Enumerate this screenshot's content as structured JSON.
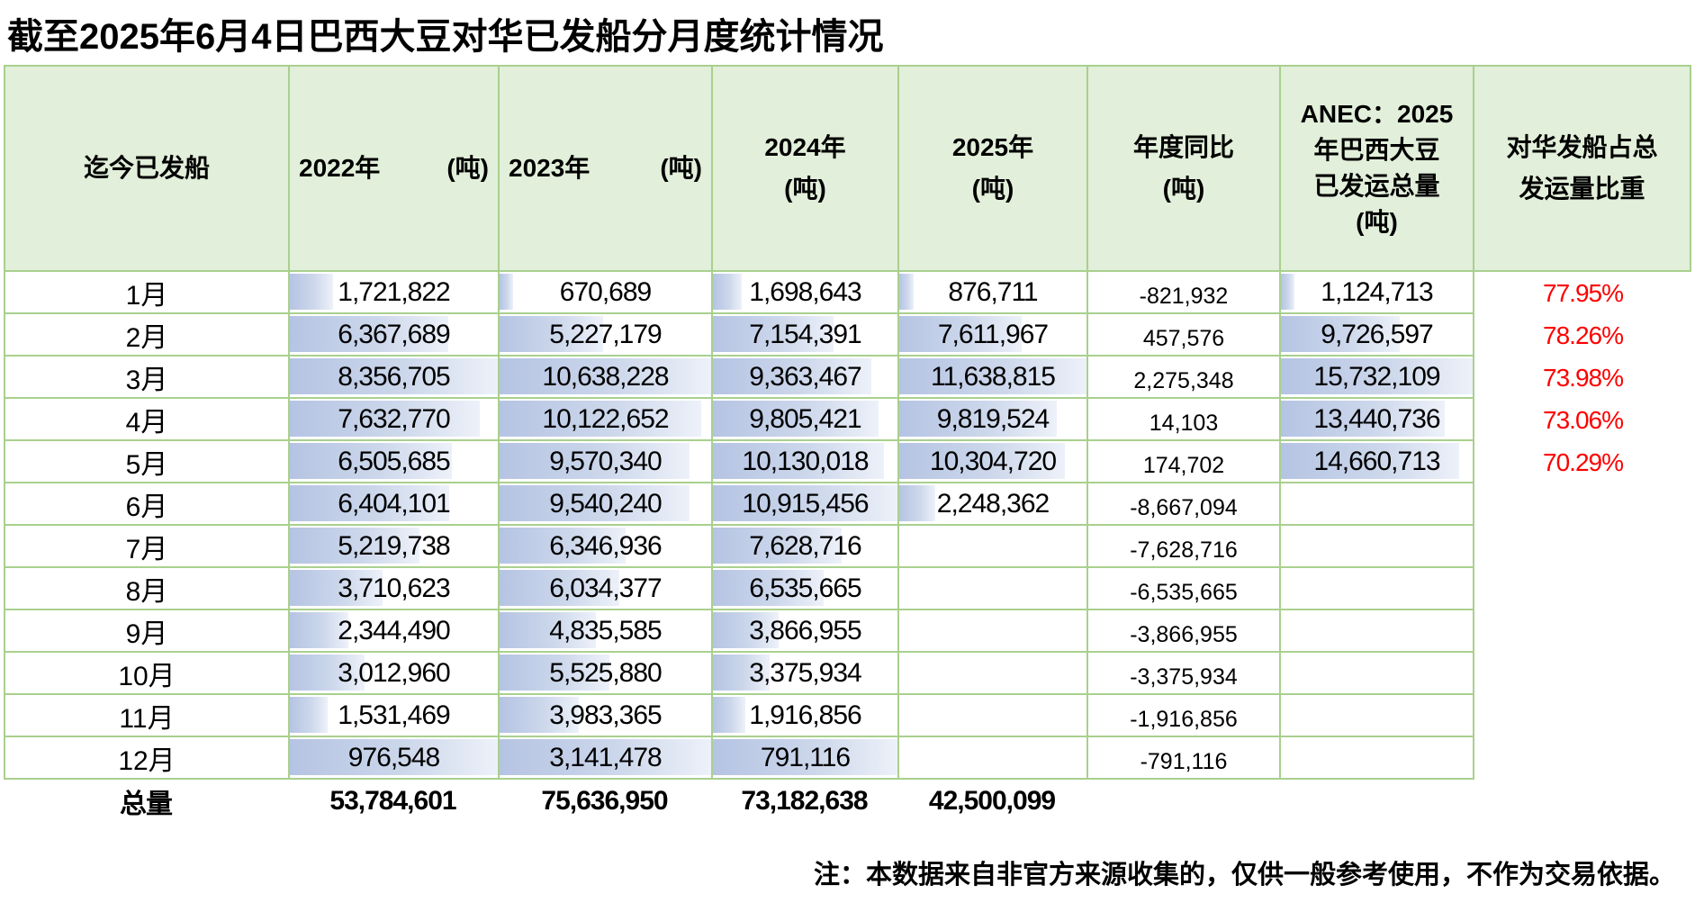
{
  "title": "截至2025年6月4日巴西大豆对华已发船分月度统计情况",
  "table": {
    "header": {
      "month": "迄今已发船",
      "y2022": "2022年",
      "y2022_unit": "(吨)",
      "y2023": "2023年",
      "y2023_unit": "(吨)",
      "y2024": "2024年\n(吨)",
      "y2025": "2025年\n(吨)",
      "yoy": "年度同比\n(吨)",
      "anec": "ANEC：2025\n年巴西大豆\n已发运总量\n(吨)",
      "share": "对华发船占总\n发运量比重"
    },
    "rows": [
      {
        "month": "1月",
        "y2022": "1,721,822",
        "y2023": "670,689",
        "y2024": "1,698,643",
        "y2025": "876,711",
        "yoy": "-821,932",
        "anec": "1,124,713",
        "share": "77.95%"
      },
      {
        "month": "2月",
        "y2022": "6,367,689",
        "y2023": "5,227,179",
        "y2024": "7,154,391",
        "y2025": "7,611,967",
        "yoy": "457,576",
        "anec": "9,726,597",
        "share": "78.26%"
      },
      {
        "month": "3月",
        "y2022": "8,356,705",
        "y2023": "10,638,228",
        "y2024": "9,363,467",
        "y2025": "11,638,815",
        "yoy": "2,275,348",
        "anec": "15,732,109",
        "share": "73.98%"
      },
      {
        "month": "4月",
        "y2022": "7,632,770",
        "y2023": "10,122,652",
        "y2024": "9,805,421",
        "y2025": "9,819,524",
        "yoy": "14,103",
        "anec": "13,440,736",
        "share": "73.06%"
      },
      {
        "month": "5月",
        "y2022": "6,505,685",
        "y2023": "9,570,340",
        "y2024": "10,130,018",
        "y2025": "10,304,720",
        "yoy": "174,702",
        "anec": "14,660,713",
        "share": "70.29%"
      },
      {
        "month": "6月",
        "y2022": "6,404,101",
        "y2023": "9,540,240",
        "y2024": "10,915,456",
        "y2025": "2,248,362",
        "yoy": "-8,667,094",
        "anec": ""
      },
      {
        "month": "7月",
        "y2022": "5,219,738",
        "y2023": "6,346,936",
        "y2024": "7,628,716",
        "y2025": "",
        "yoy": "-7,628,716",
        "anec": ""
      },
      {
        "month": "8月",
        "y2022": "3,710,623",
        "y2023": "6,034,377",
        "y2024": "6,535,665",
        "y2025": "",
        "yoy": "-6,535,665",
        "anec": ""
      },
      {
        "month": "9月",
        "y2022": "2,344,490",
        "y2023": "4,835,585",
        "y2024": "3,866,955",
        "y2025": "",
        "yoy": "-3,866,955",
        "anec": ""
      },
      {
        "month": "10月",
        "y2022": "3,012,960",
        "y2023": "5,525,880",
        "y2024": "3,375,934",
        "y2025": "",
        "yoy": "-3,375,934",
        "anec": ""
      },
      {
        "month": "11月",
        "y2022": "1,531,469",
        "y2023": "3,983,365",
        "y2024": "1,916,856",
        "y2025": "",
        "yoy": "-1,916,856",
        "anec": ""
      },
      {
        "month": "12月",
        "y2022": "976,548",
        "y2023": "3,141,478",
        "y2024": "791,116",
        "y2025": "",
        "yoy": "-791,116",
        "anec": ""
      }
    ],
    "total": {
      "label": "总量",
      "y2022": "53,784,601",
      "y2023": "75,636,950",
      "y2024": "73,182,638",
      "y2025": "42,500,099"
    }
  },
  "note": "注：本数据来自非官方来源收集的，仅供一般参考使用，不作为交易依据。",
  "colors": {
    "header_bg": "#e2efda",
    "grid_border": "#a9d08e",
    "bar_start": "#b5c4e3",
    "bar_end": "#edf1f9",
    "percent_red": "#fe0000",
    "text": "#000000"
  }
}
